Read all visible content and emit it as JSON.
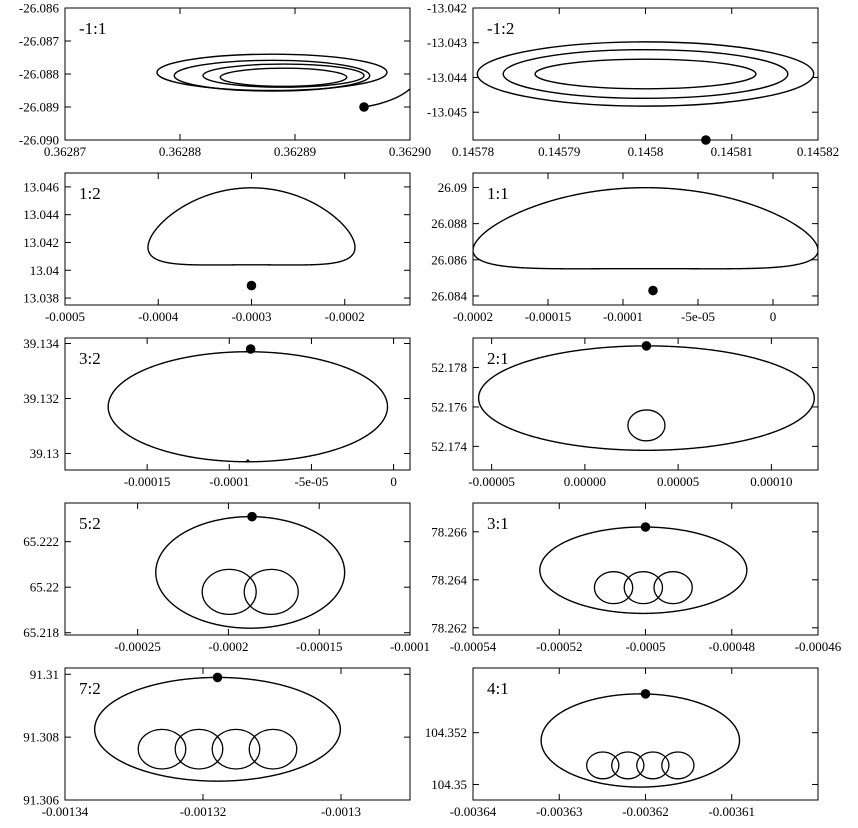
{
  "chart_data": [
    {
      "type": "line",
      "label": "-1:1",
      "xlim": [
        0.36287,
        0.3629
      ],
      "ylim": [
        -26.09,
        -26.086
      ],
      "xticks": [
        "0.36287",
        "0.36288",
        "0.36289",
        "0.36290"
      ],
      "xtick_values": [
        0.36287,
        0.36288,
        0.36289,
        0.3629
      ],
      "yticks": [
        "-26.086",
        "-26.087",
        "-26.088",
        "-26.089",
        "-26.090"
      ],
      "ytick_values": [
        -26.086,
        -26.087,
        -26.088,
        -26.089,
        -26.09
      ],
      "curve": "spiral",
      "series": [
        {
          "values": [
            {
              "cx": 0.362888,
              "cy": -26.08795,
              "rx": 1e-05,
              "ry": 0.0011
            },
            {
              "cx": 0.362888,
              "cy": -26.08805,
              "rx": 8.5e-06,
              "ry": 0.00093
            },
            {
              "cx": 0.362889,
              "cy": -26.08805,
              "rx": 7e-06,
              "ry": 0.0007
            },
            {
              "cx": 0.362889,
              "cy": -26.0881,
              "rx": 5.5e-06,
              "ry": 0.00055
            }
          ]
        }
      ],
      "marker": {
        "x": 0.362896,
        "y": -26.089
      }
    },
    {
      "type": "line",
      "label": "-1:2",
      "xlim": [
        0.14578,
        0.14582
      ],
      "ylim": [
        -13.0458,
        -13.042
      ],
      "xticks": [
        "0.14578",
        "0.14579",
        "0.1458",
        "0.14581",
        "0.14582"
      ],
      "xtick_values": [
        0.14578,
        0.14579,
        0.1458,
        0.14581,
        0.14582
      ],
      "yticks": [
        "-13.042",
        "-13.043",
        "-13.044",
        "-13.045"
      ],
      "ytick_values": [
        -13.042,
        -13.043,
        -13.044,
        -13.045
      ],
      "curve": "spiral",
      "series": [
        {
          "values": [
            {
              "cx": 0.1458,
              "cy": -13.0439,
              "rx": 1.95e-05,
              "ry": 0.00185
            },
            {
              "cx": 0.1458,
              "cy": -13.0439,
              "rx": 1.65e-05,
              "ry": 0.0014
            },
            {
              "cx": 0.1458,
              "cy": -13.0439,
              "rx": 1.28e-05,
              "ry": 0.00085
            }
          ]
        }
      ],
      "marker": {
        "x": 0.145807,
        "y": -13.0458
      }
    },
    {
      "type": "line",
      "label": "1:2",
      "xlim": [
        -0.0005,
        -0.00013
      ],
      "ylim": [
        13.0375,
        13.047
      ],
      "xticks": [
        "-0.0005",
        "-0.0004",
        "-0.0003",
        "-0.0002"
      ],
      "xtick_values": [
        -0.0005,
        -0.0004,
        -0.0003,
        -0.0002
      ],
      "yticks": [
        "13.046",
        "13.044",
        "13.042",
        "13.04",
        "13.038"
      ],
      "ytick_values": [
        13.046,
        13.044,
        13.042,
        13.04,
        13.038
      ],
      "curve": "loop",
      "series": [
        {
          "values": [
            {
              "cx": -0.0003,
              "ymin": 13.0389,
              "ymax": 13.0462,
              "rx": 0.000111,
              "k": 2,
              "n": 0
            }
          ]
        }
      ],
      "marker": {
        "x": -0.0003,
        "y": 13.0389
      }
    },
    {
      "type": "line",
      "label": "1:1",
      "xlim": [
        -0.0002,
        3e-05
      ],
      "ylim": [
        26.0835,
        26.0908
      ],
      "xticks": [
        "-0.0002",
        "-0.00015",
        "-0.0001",
        "-5e-05",
        "0"
      ],
      "xtick_values": [
        -0.0002,
        -0.00015,
        -0.0001,
        -5e-05,
        0
      ],
      "yticks": [
        "26.09",
        "26.088",
        "26.086",
        "26.084"
      ],
      "ytick_values": [
        26.09,
        26.088,
        26.086,
        26.084
      ],
      "curve": "loop",
      "series": [
        {
          "values": [
            {
              "cx": -8.5e-05,
              "ymin": 26.0843,
              "ymax": 26.0902,
              "rx": 0.000115,
              "k": 2,
              "n": 0
            }
          ]
        }
      ],
      "marker": {
        "x": -8e-05,
        "y": 26.0843
      }
    },
    {
      "type": "line",
      "label": "3:2",
      "xlim": [
        -0.0002,
        1e-05
      ],
      "ylim": [
        39.1294,
        39.1342
      ],
      "xticks": [
        "-0.00015",
        "-0.0001",
        "-5e-05",
        "0"
      ],
      "xtick_values": [
        -0.00015,
        -0.0001,
        -5e-05,
        0
      ],
      "yticks": [
        "39.134",
        "39.132",
        "39.13"
      ],
      "ytick_values": [
        39.134,
        39.132,
        39.13
      ],
      "curve": "loop",
      "series": [
        {
          "values": [
            {
              "cx": -8.87e-05,
              "ymin": 39.1297,
              "ymax": 39.1337,
              "rx": 8.5e-05,
              "k": 2,
              "n": 1,
              "dent": 7e-05
            }
          ]
        }
      ],
      "marker": {
        "x": -8.7e-05,
        "y": 39.1338
      }
    },
    {
      "type": "line",
      "label": "2:1",
      "xlim": [
        -6e-05,
        0.000125
      ],
      "ylim": [
        52.1728,
        52.1795
      ],
      "xticks": [
        "-0.00005",
        "0.00000",
        "0.00005",
        "0.00010"
      ],
      "xtick_values": [
        -5e-05,
        0,
        5e-05,
        0.0001
      ],
      "yticks": [
        "52.178",
        "52.176",
        "52.174"
      ],
      "ytick_values": [
        52.178,
        52.176,
        52.174
      ],
      "curve": "loop",
      "series": [
        {
          "values": [
            {
              "cx": 3.3e-05,
              "ymin": 52.1738,
              "ymax": 52.1791,
              "rx": 9e-05,
              "k": 2,
              "n": 1,
              "dent": 0.0023
            }
          ]
        }
      ],
      "marker": {
        "x": 3.3e-05,
        "y": 52.1791
      }
    },
    {
      "type": "line",
      "label": "5:2",
      "xlim": [
        -0.00029,
        -0.0001
      ],
      "ylim": [
        65.2179,
        65.2237
      ],
      "xticks": [
        "-0.00025",
        "-0.0002",
        "-0.00015",
        "-0.0001"
      ],
      "xtick_values": [
        -0.00025,
        -0.0002,
        -0.00015,
        -0.0001
      ],
      "yticks": [
        "65.222",
        "65.22",
        "65.218"
      ],
      "ytick_values": [
        65.222,
        65.22,
        65.218
      ],
      "curve": "loop",
      "series": [
        {
          "values": [
            {
              "cx": -0.000188,
              "ymin": 65.2182,
              "ymax": 65.2231,
              "rx": 5.2e-05,
              "k": 2,
              "n": 2,
              "dent": 0.0029
            }
          ]
        }
      ],
      "marker": {
        "x": -0.000187,
        "y": 65.2231
      }
    },
    {
      "type": "line",
      "label": "3:1",
      "xlim": [
        -0.00054,
        -0.00046
      ],
      "ylim": [
        78.2617,
        78.2672
      ],
      "xticks": [
        "-0.00054",
        "-0.00052",
        "-0.0005",
        "-0.00048",
        "-0.00046"
      ],
      "xtick_values": [
        -0.00054,
        -0.00052,
        -0.0005,
        -0.00048,
        -0.00046
      ],
      "yticks": [
        "78.266",
        "78.264",
        "78.262"
      ],
      "ytick_values": [
        78.266,
        78.264,
        78.262
      ],
      "curve": "loop",
      "series": [
        {
          "values": [
            {
              "cx": -0.0005005,
              "ymin": 78.2626,
              "ymax": 78.2662,
              "rx": 2.4e-05,
              "k": 3,
              "n": 3,
              "dent": 0.00195
            }
          ]
        }
      ],
      "marker": {
        "x": -0.0005,
        "y": 78.2662
      }
    },
    {
      "type": "line",
      "label": "7:2",
      "xlim": [
        -0.00134,
        -0.00129
      ],
      "ylim": [
        91.306,
        91.3102
      ],
      "xticks": [
        "-0.00134",
        "-0.00132",
        "-0.0013"
      ],
      "xtick_values": [
        -0.00134,
        -0.00132,
        -0.0013
      ],
      "yticks": [
        "91.31",
        "91.308",
        "91.306"
      ],
      "ytick_values": [
        91.31,
        91.308,
        91.306
      ],
      "curve": "loop",
      "series": [
        {
          "values": [
            {
              "cx": -0.0013179,
              "ymin": 91.3066,
              "ymax": 91.3099,
              "rx": 1.78e-05,
              "k": 2,
              "n": 4,
              "dent": 0.00185
            }
          ]
        }
      ],
      "marker": {
        "x": -0.0013179,
        "y": 91.3099
      }
    },
    {
      "type": "line",
      "label": "4:1",
      "xlim": [
        -0.00364,
        -0.0036
      ],
      "ylim": [
        104.3494,
        104.3545
      ],
      "xticks": [
        "-0.00364",
        "-0.00363",
        "-0.00362",
        "-0.00361"
      ],
      "xtick_values": [
        -0.00364,
        -0.00363,
        -0.00362,
        -0.00361
      ],
      "yticks": [
        "104.352",
        "104.35"
      ],
      "ytick_values": [
        104.352,
        104.35
      ],
      "curve": "loop",
      "series": [
        {
          "values": [
            {
              "cx": -0.0036206,
              "ymin": 104.3499,
              "ymax": 104.3535,
              "rx": 1.15e-05,
              "k": 4,
              "n": 4,
              "dent": 0.00152
            }
          ]
        }
      ],
      "marker": {
        "x": -0.00362,
        "y": 104.3535
      }
    }
  ]
}
